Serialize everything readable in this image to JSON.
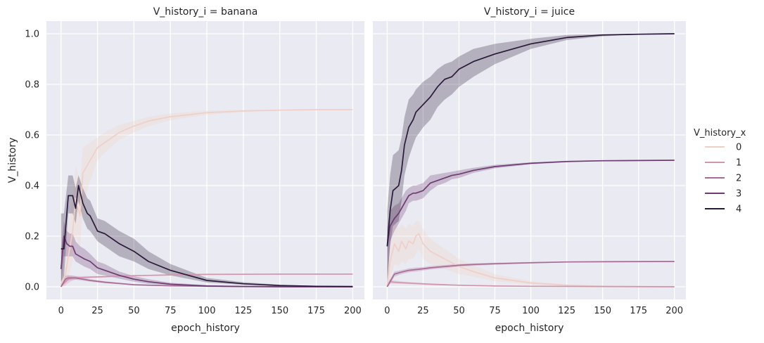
{
  "chart_data": {
    "type": "line",
    "xlabel": "epoch_history",
    "ylabel": "V_history",
    "xlim": [
      -10,
      208
    ],
    "ylim": [
      -0.05,
      1.05
    ],
    "xticks": [
      0,
      25,
      50,
      75,
      100,
      125,
      150,
      175,
      200
    ],
    "yticks": [
      0.0,
      0.2,
      0.4,
      0.6,
      0.8,
      1.0
    ],
    "xtick_labels": [
      "0",
      "25",
      "50",
      "75",
      "100",
      "125",
      "150",
      "175",
      "200"
    ],
    "ytick_labels": [
      "0.0",
      "0.2",
      "0.4",
      "0.6",
      "0.8",
      "1.0"
    ],
    "grid": true,
    "legend": {
      "title": "V_history_x",
      "placement": "right",
      "entries": [
        {
          "label": "0",
          "color": "#efcfc6"
        },
        {
          "label": "1",
          "color": "#d395ad"
        },
        {
          "label": "2",
          "color": "#a86b97"
        },
        {
          "label": "3",
          "color": "#6d3b72"
        },
        {
          "label": "4",
          "color": "#2a1a3a"
        }
      ]
    },
    "panels": [
      {
        "title": "V_history_i = banana",
        "series": [
          {
            "name": "0",
            "x": [
              0,
              3,
              5,
              8,
              10,
              13,
              15,
              20,
              25,
              30,
              40,
              50,
              60,
              75,
              100,
              125,
              150,
              175,
              200
            ],
            "y": [
              0.01,
              0.05,
              0.12,
              0.22,
              0.35,
              0.28,
              0.45,
              0.5,
              0.55,
              0.57,
              0.61,
              0.635,
              0.655,
              0.672,
              0.688,
              0.695,
              0.698,
              0.7,
              0.7
            ],
            "lower": [
              0.0,
              0.01,
              0.04,
              0.1,
              0.2,
              0.15,
              0.32,
              0.42,
              0.5,
              0.53,
              0.58,
              0.61,
              0.635,
              0.658,
              0.68,
              0.69,
              0.695,
              0.698,
              0.699
            ],
            "upper": [
              0.03,
              0.12,
              0.25,
              0.35,
              0.48,
              0.42,
              0.55,
              0.57,
              0.59,
              0.61,
              0.64,
              0.655,
              0.672,
              0.685,
              0.696,
              0.699,
              0.7,
              0.7,
              0.7
            ]
          },
          {
            "name": "1",
            "x": [
              0,
              3,
              5,
              8,
              10,
              15,
              20,
              30,
              40,
              50,
              60,
              75,
              100,
              150,
              200
            ],
            "y": [
              0.0,
              0.02,
              0.03,
              0.035,
              0.035,
              0.037,
              0.038,
              0.04,
              0.042,
              0.044,
              0.045,
              0.047,
              0.049,
              0.05,
              0.05
            ],
            "lower": [
              0.0,
              0.005,
              0.015,
              0.025,
              0.028,
              0.032,
              0.034,
              0.037,
              0.04,
              0.042,
              0.044,
              0.046,
              0.048,
              0.049,
              0.05
            ],
            "upper": [
              0.005,
              0.035,
              0.045,
              0.045,
              0.042,
              0.042,
              0.042,
              0.043,
              0.044,
              0.046,
              0.047,
              0.048,
              0.05,
              0.05,
              0.05
            ]
          },
          {
            "name": "2",
            "x": [
              0,
              3,
              5,
              10,
              20,
              30,
              40,
              50,
              75,
              100,
              125,
              150,
              200
            ],
            "y": [
              0.0,
              0.03,
              0.035,
              0.035,
              0.025,
              0.018,
              0.013,
              0.008,
              0.004,
              0.002,
              0.001,
              0.001,
              0.0
            ],
            "lower": [
              0.0,
              0.015,
              0.025,
              0.028,
              0.02,
              0.014,
              0.01,
              0.006,
              0.003,
              0.001,
              0.0,
              0.0,
              0.0
            ],
            "upper": [
              0.01,
              0.045,
              0.045,
              0.042,
              0.03,
              0.022,
              0.016,
              0.01,
              0.005,
              0.003,
              0.002,
              0.001,
              0.001
            ]
          },
          {
            "name": "3",
            "x": [
              0,
              2,
              4,
              6,
              8,
              10,
              13,
              16,
              20,
              25,
              30,
              35,
              40,
              50,
              60,
              75,
              100,
              125,
              150,
              200
            ],
            "y": [
              0.07,
              0.2,
              0.17,
              0.16,
              0.16,
              0.13,
              0.12,
              0.11,
              0.1,
              0.075,
              0.065,
              0.055,
              0.045,
              0.03,
              0.02,
              0.01,
              0.003,
              0.001,
              0.0,
              0.0
            ],
            "lower": [
              0.0,
              0.12,
              0.12,
              0.12,
              0.12,
              0.1,
              0.09,
              0.08,
              0.07,
              0.05,
              0.045,
              0.038,
              0.032,
              0.02,
              0.012,
              0.006,
              0.001,
              0.0,
              0.0,
              0.0
            ],
            "upper": [
              0.14,
              0.26,
              0.22,
              0.21,
              0.21,
              0.18,
              0.16,
              0.15,
              0.13,
              0.1,
              0.09,
              0.075,
              0.06,
              0.042,
              0.03,
              0.016,
              0.006,
              0.002,
              0.001,
              0.0
            ]
          },
          {
            "name": "4",
            "x": [
              0,
              2,
              5,
              8,
              10,
              12,
              15,
              18,
              20,
              25,
              30,
              35,
              40,
              50,
              60,
              75,
              100,
              125,
              150,
              175,
              200
            ],
            "y": [
              0.15,
              0.15,
              0.36,
              0.36,
              0.31,
              0.4,
              0.33,
              0.29,
              0.28,
              0.22,
              0.21,
              0.19,
              0.17,
              0.14,
              0.1,
              0.065,
              0.025,
              0.012,
              0.005,
              0.002,
              0.001
            ],
            "lower": [
              0.02,
              0.04,
              0.29,
              0.29,
              0.25,
              0.34,
              0.27,
              0.23,
              0.22,
              0.18,
              0.16,
              0.14,
              0.12,
              0.1,
              0.07,
              0.045,
              0.017,
              0.008,
              0.003,
              0.001,
              0.0
            ],
            "upper": [
              0.29,
              0.29,
              0.44,
              0.44,
              0.39,
              0.44,
              0.39,
              0.35,
              0.34,
              0.27,
              0.26,
              0.24,
              0.22,
              0.19,
              0.14,
              0.09,
              0.035,
              0.018,
              0.008,
              0.004,
              0.002
            ]
          }
        ]
      },
      {
        "title": "V_history_i = juice",
        "series": [
          {
            "name": "0",
            "x": [
              0,
              2,
              5,
              8,
              10,
              13,
              15,
              18,
              20,
              22,
              25,
              30,
              40,
              50,
              60,
              75,
              100,
              125,
              150,
              200
            ],
            "y": [
              0.0,
              0.1,
              0.17,
              0.14,
              0.18,
              0.15,
              0.18,
              0.17,
              0.2,
              0.21,
              0.17,
              0.14,
              0.11,
              0.08,
              0.06,
              0.035,
              0.015,
              0.006,
              0.002,
              0.0
            ],
            "lower": [
              0.0,
              0.03,
              0.09,
              0.08,
              0.1,
              0.09,
              0.11,
              0.11,
              0.13,
              0.15,
              0.11,
              0.09,
              0.07,
              0.05,
              0.04,
              0.022,
              0.009,
              0.003,
              0.001,
              0.0
            ],
            "upper": [
              0.02,
              0.19,
              0.26,
              0.23,
              0.25,
              0.23,
              0.25,
              0.24,
              0.26,
              0.26,
              0.23,
              0.19,
              0.15,
              0.11,
              0.085,
              0.05,
              0.022,
              0.009,
              0.003,
              0.001
            ]
          },
          {
            "name": "1",
            "x": [
              0,
              2,
              5,
              10,
              20,
              30,
              50,
              75,
              100,
              150,
              200
            ],
            "y": [
              0.0,
              0.02,
              0.018,
              0.016,
              0.013,
              0.01,
              0.006,
              0.003,
              0.002,
              0.001,
              0.0
            ],
            "lower": [
              0.0,
              0.012,
              0.012,
              0.011,
              0.009,
              0.007,
              0.004,
              0.002,
              0.001,
              0.0,
              0.0
            ],
            "upper": [
              0.003,
              0.028,
              0.025,
              0.021,
              0.017,
              0.013,
              0.008,
              0.004,
              0.002,
              0.001,
              0.001
            ]
          },
          {
            "name": "2",
            "x": [
              0,
              3,
              5,
              8,
              10,
              15,
              20,
              25,
              30,
              40,
              50,
              60,
              75,
              100,
              125,
              150,
              200
            ],
            "y": [
              0.0,
              0.03,
              0.05,
              0.055,
              0.058,
              0.065,
              0.068,
              0.071,
              0.075,
              0.08,
              0.085,
              0.088,
              0.091,
              0.095,
              0.098,
              0.099,
              0.1
            ],
            "lower": [
              0.0,
              0.02,
              0.04,
              0.046,
              0.05,
              0.057,
              0.06,
              0.064,
              0.068,
              0.074,
              0.08,
              0.083,
              0.087,
              0.092,
              0.096,
              0.098,
              0.099
            ],
            "upper": [
              0.01,
              0.04,
              0.06,
              0.064,
              0.066,
              0.073,
              0.076,
              0.078,
              0.082,
              0.086,
              0.09,
              0.093,
              0.095,
              0.098,
              0.099,
              0.1,
              0.1
            ]
          },
          {
            "name": "3",
            "x": [
              0,
              2,
              5,
              8,
              10,
              13,
              15,
              18,
              20,
              25,
              30,
              35,
              40,
              45,
              50,
              60,
              75,
              100,
              125,
              150,
              200
            ],
            "y": [
              0.16,
              0.24,
              0.27,
              0.29,
              0.31,
              0.34,
              0.36,
              0.37,
              0.37,
              0.38,
              0.41,
              0.42,
              0.43,
              0.44,
              0.445,
              0.46,
              0.475,
              0.488,
              0.495,
              0.498,
              0.5
            ],
            "lower": [
              0.0,
              0.18,
              0.22,
              0.25,
              0.27,
              0.3,
              0.33,
              0.34,
              0.34,
              0.35,
              0.38,
              0.4,
              0.41,
              0.425,
              0.43,
              0.45,
              0.468,
              0.484,
              0.492,
              0.497,
              0.499
            ],
            "upper": [
              0.24,
              0.3,
              0.32,
              0.33,
              0.35,
              0.38,
              0.39,
              0.4,
              0.4,
              0.41,
              0.44,
              0.445,
              0.45,
              0.455,
              0.46,
              0.47,
              0.482,
              0.492,
              0.498,
              0.5,
              0.5
            ]
          },
          {
            "name": "4",
            "x": [
              0,
              2,
              4,
              6,
              8,
              10,
              12,
              15,
              18,
              20,
              25,
              30,
              35,
              40,
              45,
              50,
              60,
              75,
              100,
              125,
              150,
              175,
              200
            ],
            "y": [
              0.16,
              0.3,
              0.38,
              0.39,
              0.4,
              0.46,
              0.56,
              0.63,
              0.66,
              0.69,
              0.72,
              0.75,
              0.79,
              0.82,
              0.83,
              0.86,
              0.89,
              0.92,
              0.96,
              0.985,
              0.995,
              0.998,
              1.0
            ],
            "lower": [
              0.02,
              0.16,
              0.24,
              0.25,
              0.26,
              0.34,
              0.44,
              0.51,
              0.56,
              0.59,
              0.63,
              0.66,
              0.71,
              0.74,
              0.76,
              0.79,
              0.83,
              0.88,
              0.94,
              0.975,
              0.99,
              0.997,
              0.999
            ],
            "upper": [
              0.3,
              0.44,
              0.52,
              0.53,
              0.54,
              0.59,
              0.67,
              0.74,
              0.76,
              0.78,
              0.81,
              0.83,
              0.86,
              0.88,
              0.89,
              0.91,
              0.94,
              0.96,
              0.98,
              0.995,
              0.999,
              1.0,
              1.0
            ]
          }
        ]
      }
    ]
  }
}
